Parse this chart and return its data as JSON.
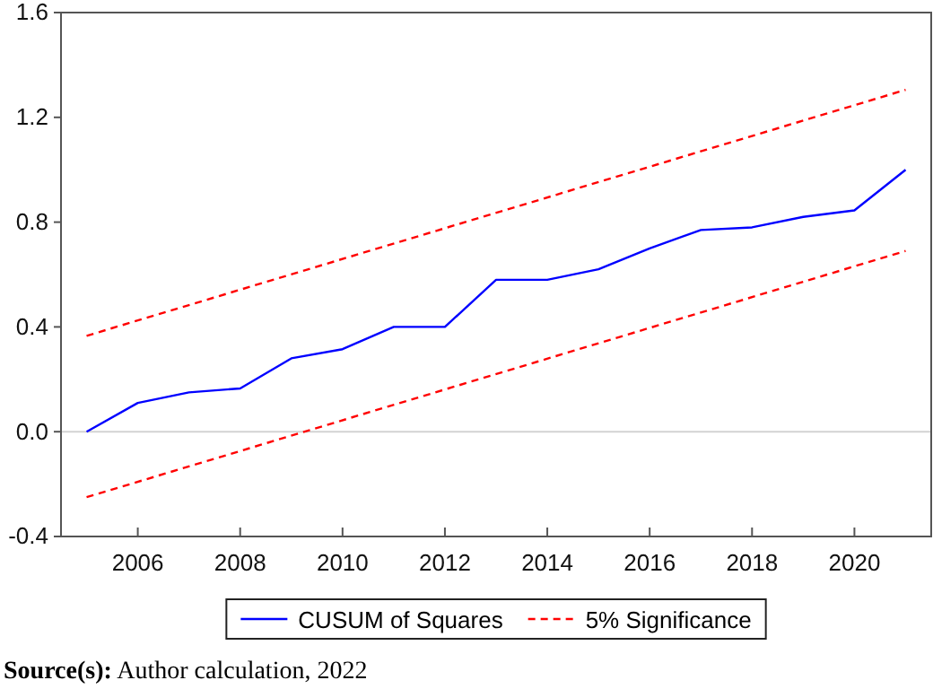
{
  "chart_data": {
    "type": "line",
    "xlim": [
      2004.5,
      2021.5
    ],
    "xticks": [
      2006,
      2008,
      2010,
      2012,
      2014,
      2016,
      2018,
      2020
    ],
    "ylim": [
      -0.4,
      1.6
    ],
    "yticks": [
      {
        "value": -0.4,
        "label": "-0.4"
      },
      {
        "value": 0,
        "label": "0.0"
      },
      {
        "value": 0.4,
        "label": "0.4"
      },
      {
        "value": 0.8,
        "label": "0.8"
      },
      {
        "value": 1.2,
        "label": "1.2"
      },
      {
        "value": 1.6,
        "label": "1.6"
      }
    ],
    "series": [
      {
        "name": "CUSUM of Squares",
        "color": "#0000ff",
        "line_style": "solid",
        "x": [
          2005,
          2006,
          2007,
          2008,
          2009,
          2010,
          2011,
          2012,
          2013,
          2014,
          2015,
          2016,
          2017,
          2018,
          2019,
          2020,
          2021
        ],
        "values": [
          0,
          0.11,
          0.15,
          0.165,
          0.28,
          0.315,
          0.4,
          0.4,
          0.58,
          0.58,
          0.62,
          0.7,
          0.77,
          0.78,
          0.82,
          0.845,
          1.0
        ]
      },
      {
        "name": "5% Significance",
        "color": "#ff0000",
        "line_style": "dashed",
        "x": [
          2005,
          2021
        ],
        "values": [
          0.366,
          1.305
        ]
      },
      {
        "color": "#ff0000",
        "line_style": "dashed",
        "x": [
          2005,
          2021
        ],
        "values": [
          -0.25,
          0.69
        ]
      }
    ],
    "ref_lines": [
      {
        "axis": "y",
        "value": 0,
        "color": "#d3d3d3"
      }
    ],
    "grid": false,
    "legend": "bottom",
    "marker": "none",
    "annotations": [
      "Source(s): Author calculation, 2022"
    ]
  }
}
